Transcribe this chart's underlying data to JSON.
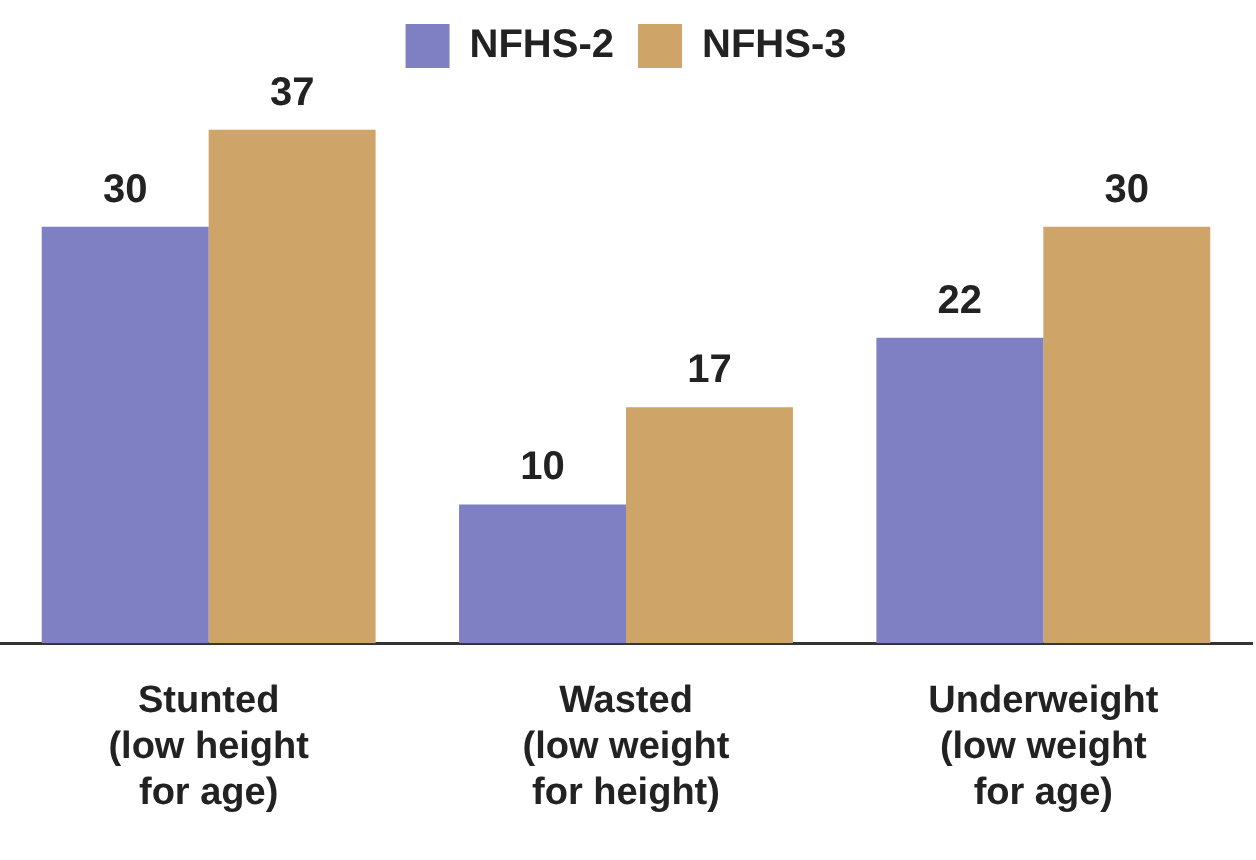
{
  "chart_data": {
    "type": "bar",
    "categories": [
      "Stunted\n(low height\nfor age)",
      "Wasted\n(low weight\nfor height)",
      "Underweight\n(low weight\nfor age)"
    ],
    "series": [
      {
        "name": "NFHS-2",
        "color": "#7f7fc4",
        "values": [
          30,
          10,
          22
        ]
      },
      {
        "name": "NFHS-3",
        "color": "#cfa468",
        "values": [
          37,
          17,
          30
        ]
      }
    ],
    "tick_labels": "x",
    "grid": false,
    "legend": "top",
    "data_labels": true
  }
}
